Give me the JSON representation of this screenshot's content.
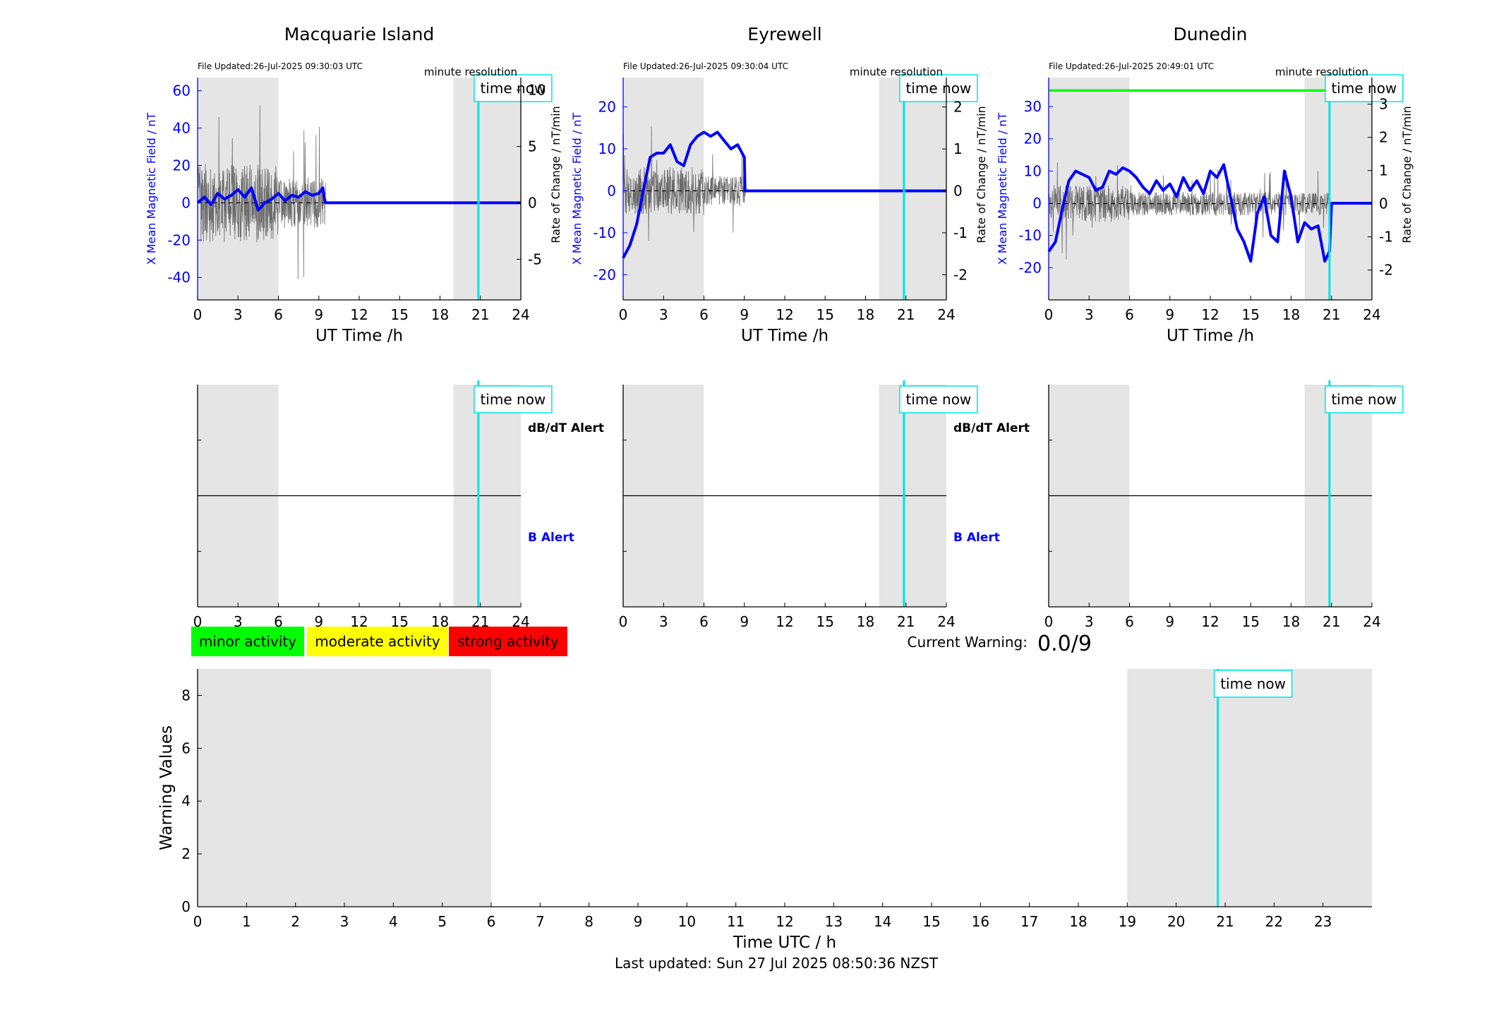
{
  "footer": "Last updated: Sun 27 Jul 2025 08:50:36 NZST",
  "legend": [
    {
      "label": "minor activity",
      "color": "#00ff00"
    },
    {
      "label": "moderate activity",
      "color": "#ffff00"
    },
    {
      "label": "strong activity",
      "color": "#ff0000"
    }
  ],
  "current_warning": {
    "label": "Current Warning:",
    "value": "0.0/9"
  },
  "labels": {
    "time_now": "time now",
    "minute_resolution": "minute resolution",
    "dbdt_alert": "dB/dT Alert",
    "b_alert": "B Alert"
  },
  "colors": {
    "shade": "#e5e5e5",
    "time_now": "#00e5e5",
    "mean_field": "#0000ff",
    "rate": "#000000",
    "green_line": "#00ff00"
  },
  "chart_data": [
    {
      "type": "line",
      "id": "mac",
      "title": "Macquarie Island",
      "file_updated": "File Updated:26-Jul-2025 09:30:03 UTC",
      "xlabel": "UT Time /h",
      "ylabel": "X Mean Magnetic Field / nT",
      "y2label": "Rate of Change / nT/min",
      "xlim": [
        0,
        24
      ],
      "ylim": [
        -52,
        67
      ],
      "y2lim": [
        -8.6,
        11.1
      ],
      "xticks": [
        0,
        3,
        6,
        9,
        12,
        15,
        18,
        21,
        24
      ],
      "yticks": [
        -40,
        -20,
        0,
        20,
        40,
        60
      ],
      "y2ticks": [
        -5,
        0,
        5,
        10
      ],
      "shaded_x": [
        [
          0,
          6
        ],
        [
          19,
          24
        ]
      ],
      "time_now": 20.85,
      "rate_data_end": 9.5,
      "mean_field": {
        "x": [
          0,
          0.5,
          1,
          1.5,
          2,
          2.5,
          3,
          3.5,
          4,
          4.5,
          5,
          5.5,
          6,
          6.5,
          7,
          7.5,
          8,
          8.5,
          9,
          9.3,
          9.4,
          9.5,
          24
        ],
        "y": [
          0,
          3,
          -1,
          5,
          2,
          4,
          7,
          3,
          8,
          -4,
          0,
          2,
          5,
          1,
          4,
          3,
          6,
          4,
          5,
          8,
          3,
          0,
          0
        ]
      }
    },
    {
      "type": "line",
      "id": "eye",
      "title": "Eyrewell",
      "file_updated": "File Updated:26-Jul-2025 09:30:04 UTC",
      "xlabel": "UT Time /h",
      "ylabel": "X Mean Magnetic Field / nT",
      "y2label": "Rate of Change / nT/min",
      "xlim": [
        0,
        24
      ],
      "ylim": [
        -26,
        27
      ],
      "y2lim": [
        -2.6,
        2.7
      ],
      "xticks": [
        0,
        3,
        6,
        9,
        12,
        15,
        18,
        21,
        24
      ],
      "yticks": [
        -20,
        -10,
        0,
        10,
        20
      ],
      "y2ticks": [
        -2,
        -1,
        0,
        1,
        2
      ],
      "shaded_x": [
        [
          0,
          6
        ],
        [
          19,
          24
        ]
      ],
      "time_now": 20.85,
      "rate_data_end": 9.1,
      "mean_field": {
        "x": [
          0,
          0.5,
          1,
          1.5,
          2,
          2.5,
          3,
          3.5,
          4,
          4.5,
          5,
          5.5,
          6,
          6.5,
          7,
          7.5,
          8,
          8.5,
          9,
          9.05,
          9.1,
          24
        ],
        "y": [
          -16,
          -13,
          -8,
          0,
          8,
          9,
          9,
          11,
          7,
          6,
          11,
          13,
          14,
          13,
          14,
          12,
          10,
          11,
          8,
          0,
          0,
          0
        ]
      }
    },
    {
      "type": "line",
      "id": "dun",
      "title": "Dunedin",
      "file_updated": "File Updated:26-Jul-2025 20:49:01 UTC",
      "xlabel": "UT Time /h",
      "ylabel": "X Mean Magnetic Field / nT",
      "y2label": "Rate of Change / nT/min",
      "xlim": [
        0,
        24
      ],
      "ylim": [
        -30,
        39
      ],
      "y2lim": [
        -2.9,
        3.8
      ],
      "xticks": [
        0,
        3,
        6,
        9,
        12,
        15,
        18,
        21,
        24
      ],
      "yticks": [
        -20,
        -10,
        0,
        10,
        20,
        30
      ],
      "y2ticks": [
        -2,
        -1,
        0,
        1,
        2,
        3
      ],
      "shaded_x": [
        [
          0,
          6
        ],
        [
          19,
          24
        ]
      ],
      "time_now": 20.85,
      "rate_data_end": 20.85,
      "threshold_y": 35,
      "mean_field": {
        "x": [
          0,
          0.5,
          1,
          1.5,
          2,
          2.5,
          3,
          3.5,
          4,
          4.5,
          5,
          5.5,
          6,
          6.5,
          7,
          7.5,
          8,
          8.5,
          9,
          9.5,
          10,
          10.5,
          11,
          11.5,
          12,
          12.5,
          13,
          13.5,
          14,
          14.5,
          15,
          15.5,
          16,
          16.5,
          17,
          17.5,
          18,
          18.5,
          19,
          19.5,
          20,
          20.5,
          20.85,
          21,
          24
        ],
        "y": [
          -15,
          -12,
          -2,
          7,
          10,
          9,
          8,
          4,
          5,
          10,
          9,
          11,
          10,
          8,
          5,
          3,
          7,
          4,
          6,
          2,
          8,
          4,
          7,
          3,
          10,
          8,
          12,
          2,
          -8,
          -12,
          -18,
          -3,
          2,
          -10,
          -12,
          10,
          2,
          -12,
          -6,
          -8,
          -7,
          -18,
          -15,
          0,
          0
        ]
      }
    },
    {
      "type": "line",
      "id": "alert_mac",
      "xlim": [
        0,
        24
      ],
      "xticks": [
        0,
        3,
        6,
        9,
        12,
        15,
        18,
        21,
        24
      ],
      "shaded_x": [
        [
          0,
          6
        ],
        [
          19,
          24
        ]
      ],
      "time_now": 20.85,
      "show_alert_labels": true
    },
    {
      "type": "line",
      "id": "alert_eye",
      "xlim": [
        0,
        24
      ],
      "xticks": [
        0,
        3,
        6,
        9,
        12,
        15,
        18,
        21,
        24
      ],
      "shaded_x": [
        [
          0,
          6
        ],
        [
          19,
          24
        ]
      ],
      "time_now": 20.85,
      "show_alert_labels": true
    },
    {
      "type": "line",
      "id": "alert_dun",
      "xlim": [
        0,
        24
      ],
      "xticks": [
        0,
        3,
        6,
        9,
        12,
        15,
        18,
        21,
        24
      ],
      "shaded_x": [
        [
          0,
          6
        ],
        [
          19,
          24
        ]
      ],
      "time_now": 20.85,
      "show_alert_labels": false
    },
    {
      "type": "line",
      "id": "warning",
      "xlabel": "Time UTC / h",
      "ylabel": "Warning Values",
      "xlim": [
        0,
        24
      ],
      "ylim": [
        0,
        9
      ],
      "xticks": [
        0,
        1,
        2,
        3,
        4,
        5,
        6,
        7,
        8,
        9,
        10,
        11,
        12,
        13,
        14,
        15,
        16,
        17,
        18,
        19,
        20,
        21,
        22,
        23
      ],
      "yticks": [
        0,
        2,
        4,
        6,
        8
      ],
      "shaded_x": [
        [
          0,
          6
        ],
        [
          19,
          24
        ]
      ],
      "time_now": 20.85
    }
  ]
}
